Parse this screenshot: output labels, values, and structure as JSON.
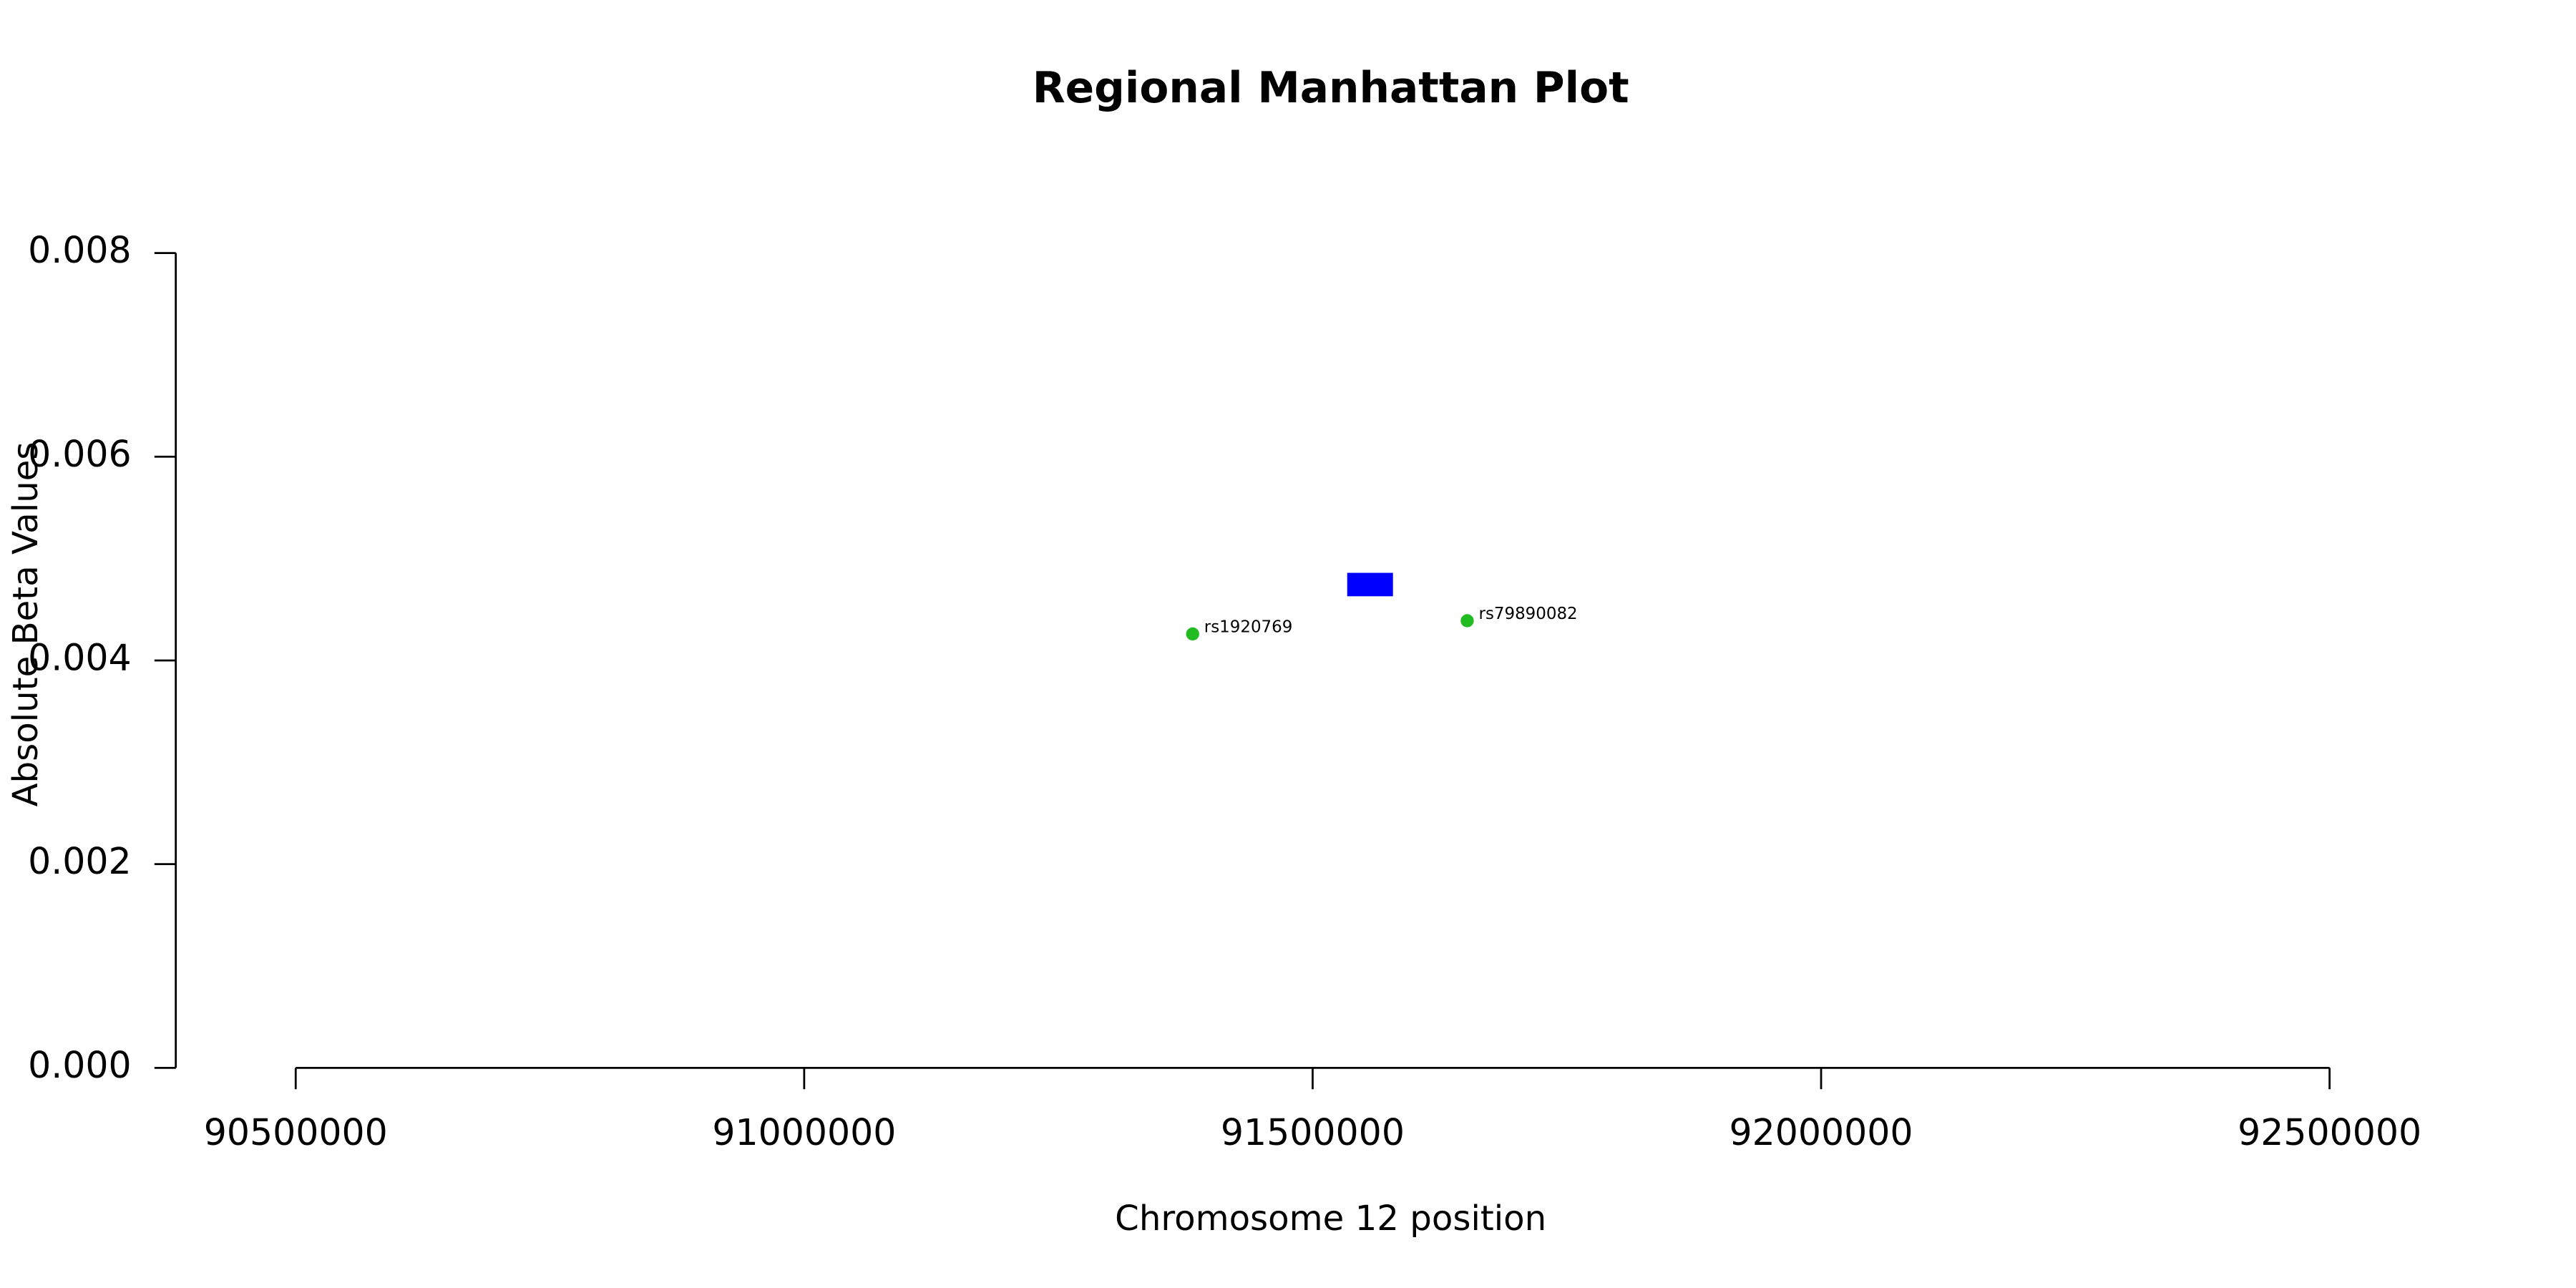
{
  "chart_data": {
    "type": "scatter",
    "title": "Regional Manhattan Plot",
    "xlabel": "Chromosome 12 position",
    "ylabel": "Absolute Beta Values",
    "x": [
      91382000,
      91652000
    ],
    "values": [
      0.00426,
      0.00439
    ],
    "point_labels": [
      "rs1920769",
      "rs79890082"
    ],
    "color": "#22bb22",
    "region": {
      "x": [
        91534000,
        91579000
      ],
      "y": [
        0.00463,
        0.00486
      ],
      "color": "#0000ff"
    },
    "xlim": [
      90500000,
      92500000
    ],
    "xticks": [
      90500000,
      91000000,
      91500000,
      92000000,
      92500000
    ],
    "ylim": [
      0,
      0.008
    ],
    "yticks": [
      {
        "value": 0,
        "label": "0.000"
      },
      {
        "value": 0.002,
        "label": "0.002"
      },
      {
        "value": 0.004,
        "label": "0.004"
      },
      {
        "value": 0.006,
        "label": "0.006"
      },
      {
        "value": 0.008,
        "label": "0.008"
      }
    ],
    "grid": false
  }
}
